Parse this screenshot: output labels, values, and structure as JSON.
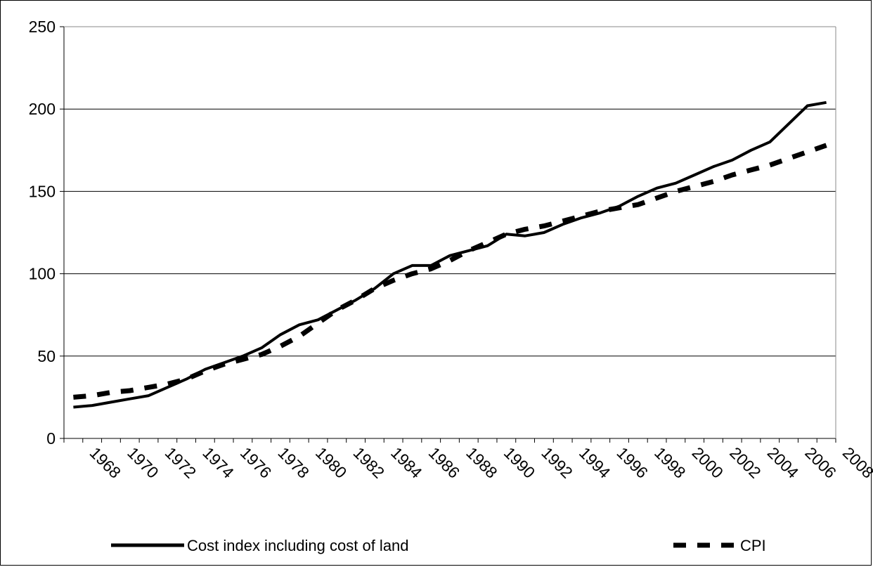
{
  "chart_data": {
    "type": "line",
    "title": "",
    "xlabel": "",
    "ylabel": "",
    "ylim": [
      0,
      250
    ],
    "y_ticks": [
      0,
      50,
      100,
      150,
      200,
      250
    ],
    "x_tick_labels": [
      "1968",
      "1970",
      "1972",
      "1974",
      "1976",
      "1978",
      "1980",
      "1982",
      "1984",
      "1986",
      "1988",
      "1990",
      "1992",
      "1994",
      "1996",
      "1998",
      "2000",
      "2002",
      "2004",
      "2006",
      "2008"
    ],
    "x": [
      1967,
      1968,
      1969,
      1970,
      1971,
      1972,
      1973,
      1974,
      1975,
      1976,
      1977,
      1978,
      1979,
      1980,
      1981,
      1982,
      1983,
      1984,
      1985,
      1986,
      1987,
      1988,
      1989,
      1990,
      1991,
      1992,
      1993,
      1994,
      1995,
      1996,
      1997,
      1998,
      1999,
      2000,
      2001,
      2002,
      2003,
      2004,
      2005,
      2006,
      2007
    ],
    "grid": "horizontal",
    "legend_position": "bottom",
    "series": [
      {
        "name": "Cost index including cost of land",
        "style": "solid",
        "color": "#000000",
        "values": [
          19,
          20,
          22,
          24,
          26,
          31,
          36,
          42,
          46,
          50,
          55,
          63,
          69,
          72,
          78,
          84,
          91,
          100,
          105,
          105,
          111,
          114,
          117,
          124,
          123,
          125,
          130,
          134,
          137,
          141,
          147,
          152,
          155,
          160,
          165,
          169,
          175,
          180,
          191,
          202,
          204
        ]
      },
      {
        "name": "CPI",
        "style": "dashed",
        "color": "#000000",
        "values": [
          25,
          26,
          28,
          29,
          31,
          33,
          36,
          41,
          45,
          48,
          51,
          56,
          62,
          70,
          78,
          84,
          91,
          96,
          100,
          103,
          108,
          114,
          119,
          124,
          127,
          129,
          132,
          135,
          138,
          140,
          142,
          146,
          150,
          153,
          156,
          160,
          163,
          166,
          170,
          174,
          178
        ]
      }
    ]
  }
}
